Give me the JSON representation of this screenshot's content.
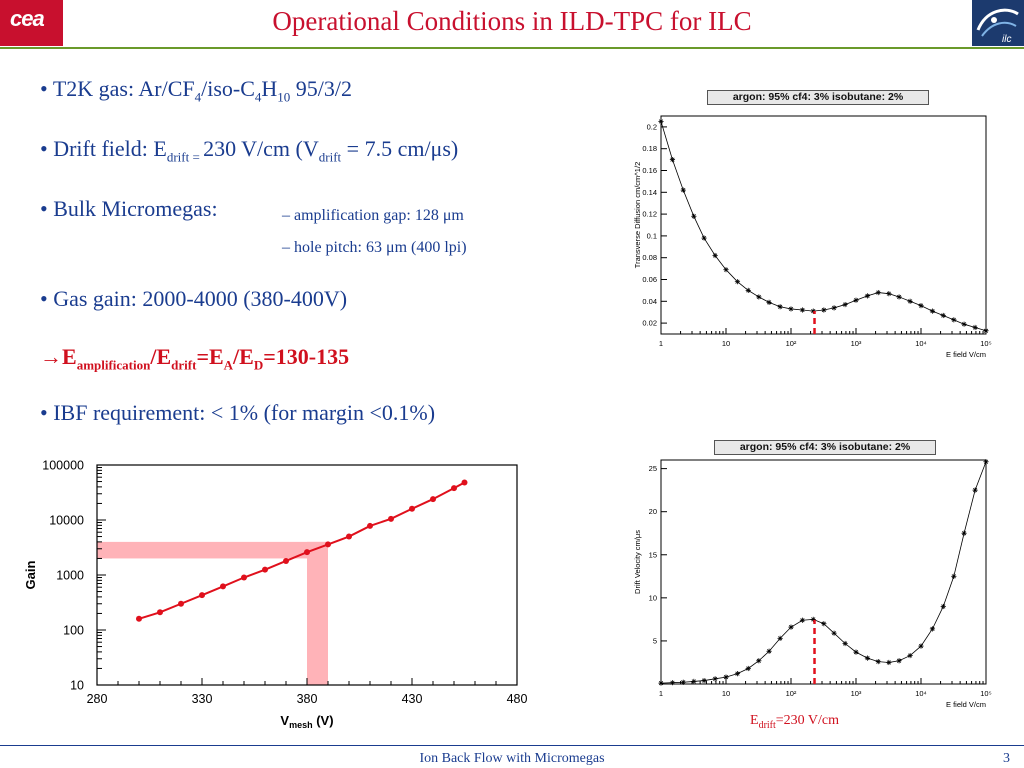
{
  "slide": {
    "title": "Operational Conditions in ILD-TPC for ILC",
    "footer": "Ion Back Flow with Micromegas",
    "page_number": "3",
    "cea_logo_text": "cea",
    "ilc_logo_text": "ilc"
  },
  "bullets": {
    "b1": {
      "text": "T2K gas: Ar/CF",
      "sub1": "4",
      "mid": "/iso-C",
      "sub2": "4",
      "mid2": "H",
      "sub3": "10",
      "end": " 95/3/2"
    },
    "b2": {
      "text": "Drift field: E",
      "sub1": "drift = ",
      "mid": "230 V/cm  (V",
      "sub2": "drift",
      "end": " = 7.5 cm/μs)"
    },
    "b3": {
      "text": "Bulk Micromegas:",
      "item1": "– amplification gap: 128 μm",
      "item2": "– hole pitch: 63 μm (400 lpi)"
    },
    "b4": {
      "text": "Gas gain: 2000-4000 (380-400V)"
    },
    "b5": {
      "arrow": "→",
      "e": "E",
      "sub1": "amplification",
      "mid": "/E",
      "sub2": "drift",
      "eq": "=E",
      "sub3": "A",
      "slash": "/E",
      "sub4": "D",
      "end": "=130-135"
    },
    "b6": {
      "text": "IBF requirement: < 1% (for margin <0.1%)"
    },
    "bullet_char": "•"
  },
  "annotation": {
    "e": "E",
    "sub": "drift",
    "end": "=230 V/cm"
  },
  "chart_data": [
    {
      "id": "gain",
      "type": "line",
      "xlabel": "V",
      "xlabel_sub": "mesh",
      "xlabel_unit": " (V)",
      "ylabel": "Gain",
      "xlim": [
        280,
        480
      ],
      "ylim": [
        10,
        100000
      ],
      "yscale": "log",
      "xticks": [
        "280",
        "330",
        "380",
        "430",
        "480"
      ],
      "xtick_values": [
        280,
        330,
        380,
        430,
        480
      ],
      "yticks": [
        "100000",
        "10000",
        "1000",
        "100",
        "10"
      ],
      "ytick_values": [
        100000,
        10000,
        1000,
        100,
        10
      ],
      "series_color": "#e0101c",
      "band_color": "#ffb3b8",
      "gain_band": [
        2000,
        4000
      ],
      "voltage_band": [
        380,
        390
      ],
      "series": [
        {
          "x": [
            300,
            310,
            320,
            330,
            340,
            350,
            360,
            370,
            380,
            390,
            400,
            410,
            420,
            430,
            440,
            450,
            455
          ],
          "y": [
            160,
            210,
            300,
            430,
            620,
            900,
            1250,
            1800,
            2600,
            3600,
            5000,
            7800,
            10500,
            16000,
            24000,
            38000,
            48000
          ]
        }
      ]
    },
    {
      "id": "diffusion",
      "type": "line",
      "title": "argon: 95% cf4: 3% isobutane: 2%",
      "xlabel": "E field V/cm",
      "ylabel": "Transverse Diffusion cm/cm^1/2",
      "xscale": "log",
      "xlim": [
        1,
        100000
      ],
      "ylim": [
        0.01,
        0.21
      ],
      "xticks": [
        "1",
        "10",
        "10²",
        "10³",
        "10⁴",
        "10⁵"
      ],
      "xtick_values": [
        1,
        10,
        100,
        1000,
        10000,
        100000
      ],
      "yticks": [
        "0.02",
        "0.04",
        "0.06",
        "0.08",
        "0.1",
        "0.12",
        "0.14",
        "0.16",
        "0.18",
        "0.2"
      ],
      "ytick_values": [
        0.02,
        0.04,
        0.06,
        0.08,
        0.1,
        0.12,
        0.14,
        0.16,
        0.18,
        0.2
      ],
      "marker": "230 V/cm",
      "marker_x": 230,
      "series": [
        {
          "x": [
            1,
            1.5,
            2.2,
            3.2,
            4.6,
            6.8,
            10,
            15,
            22,
            32,
            46,
            68,
            100,
            150,
            220,
            320,
            460,
            680,
            1000,
            1500,
            2200,
            3200,
            4600,
            6800,
            10000,
            15000,
            22000,
            32000,
            46000,
            68000,
            100000
          ],
          "y": [
            0.205,
            0.17,
            0.142,
            0.118,
            0.098,
            0.082,
            0.069,
            0.058,
            0.05,
            0.044,
            0.039,
            0.035,
            0.033,
            0.032,
            0.031,
            0.032,
            0.034,
            0.037,
            0.041,
            0.045,
            0.048,
            0.047,
            0.044,
            0.04,
            0.036,
            0.031,
            0.027,
            0.023,
            0.019,
            0.016,
            0.013
          ]
        }
      ]
    },
    {
      "id": "velocity",
      "type": "line",
      "title": "argon: 95% cf4: 3% isobutane: 2%",
      "xlabel": "E field V/cm",
      "ylabel": "Drift Velocity cm/μs",
      "xscale": "log",
      "xlim": [
        1,
        100000
      ],
      "ylim": [
        0,
        26
      ],
      "xticks": [
        "1",
        "10",
        "10²",
        "10³",
        "10⁴",
        "10⁵"
      ],
      "xtick_values": [
        1,
        10,
        100,
        1000,
        10000,
        100000
      ],
      "yticks": [
        "5",
        "10",
        "15",
        "20",
        "25"
      ],
      "ytick_values": [
        5,
        10,
        15,
        20,
        25
      ],
      "marker": "230 V/cm",
      "marker_x": 230,
      "series": [
        {
          "x": [
            1,
            1.5,
            2.2,
            3.2,
            4.6,
            6.8,
            10,
            15,
            22,
            32,
            46,
            68,
            100,
            150,
            220,
            320,
            460,
            680,
            1000,
            1500,
            2200,
            3200,
            4600,
            6800,
            10000,
            15000,
            22000,
            32000,
            46000,
            68000,
            100000
          ],
          "y": [
            0.1,
            0.15,
            0.2,
            0.3,
            0.4,
            0.6,
            0.8,
            1.2,
            1.8,
            2.7,
            3.8,
            5.3,
            6.6,
            7.4,
            7.5,
            7.0,
            5.9,
            4.7,
            3.7,
            3.0,
            2.6,
            2.5,
            2.7,
            3.3,
            4.4,
            6.4,
            9.0,
            12.5,
            17.5,
            22.5,
            25.8
          ]
        }
      ]
    }
  ]
}
